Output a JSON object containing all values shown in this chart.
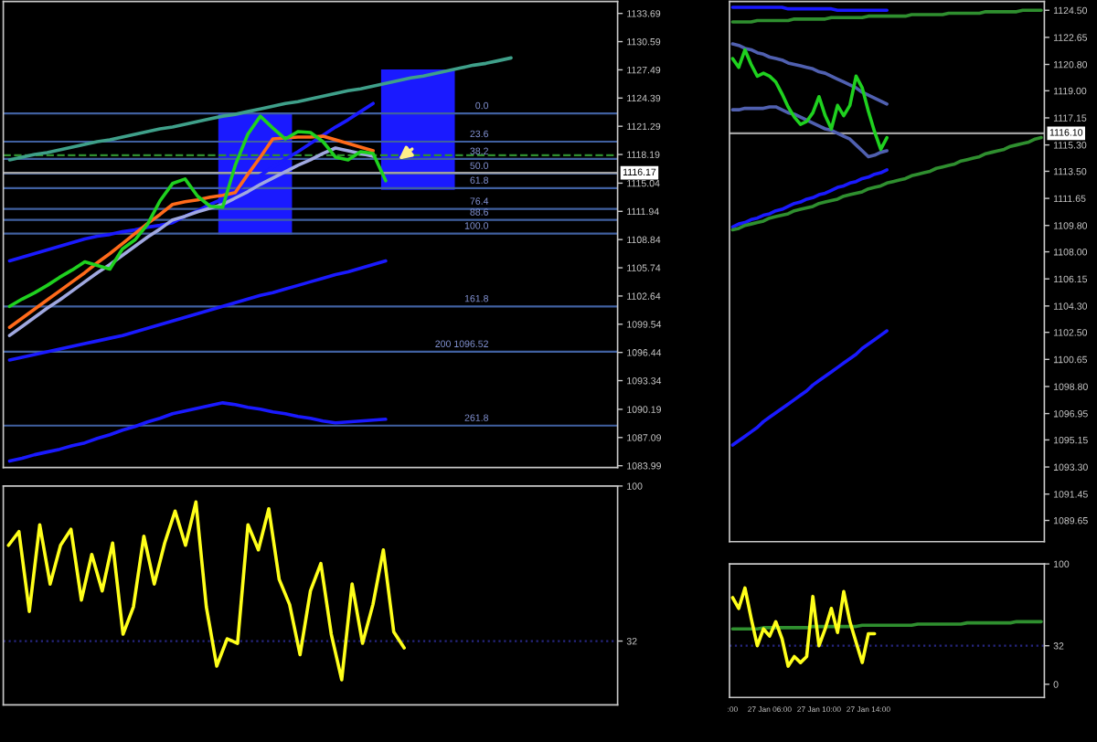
{
  "chart_data": [
    {
      "type": "line",
      "tick_labels": "y",
      "categories": [
        null,
        null,
        null,
        null,
        null,
        null,
        null,
        null,
        null,
        null,
        null,
        null,
        null,
        null,
        null,
        null,
        null,
        null,
        null,
        null,
        null,
        null,
        null,
        null,
        null,
        null,
        null,
        null,
        null,
        null,
        null,
        null,
        null,
        null,
        null,
        null,
        null,
        null,
        null,
        null,
        null,
        null,
        null,
        null,
        null,
        null,
        null,
        null,
        null
      ],
      "series": [
        {
          "color": "#1a1aff",
          "values": [
            1095.6,
            1095.9,
            1096.2,
            1096.5,
            1096.8,
            1097.1,
            1097.4,
            1097.7,
            1098.0,
            1098.3,
            1098.7,
            1099.1,
            1099.5,
            1099.9,
            1100.3,
            1100.7,
            1101.1,
            1101.5,
            1101.9,
            1102.3,
            1102.7,
            1103.0,
            1103.4,
            1103.8,
            1104.2,
            1104.6,
            1105.0,
            1105.3,
            1105.7,
            1106.1,
            1106.5,
            null,
            null,
            null,
            null,
            null,
            null,
            null,
            null,
            null,
            null,
            null,
            null,
            null,
            null,
            null,
            null,
            null,
            null
          ]
        },
        {
          "color": "#1a1aff",
          "values": [
            1084.5,
            1084.8,
            1085.2,
            1085.5,
            1085.8,
            1086.2,
            1086.5,
            1087.0,
            1087.4,
            1087.9,
            1088.3,
            1088.8,
            1089.2,
            1089.7,
            1090.0,
            1090.3,
            1090.6,
            1090.9,
            1090.7,
            1090.4,
            1090.2,
            1089.9,
            1089.7,
            1089.4,
            1089.2,
            1088.9,
            1088.7,
            1088.8,
            1088.9,
            1089.0,
            1089.1,
            null,
            null,
            null,
            null,
            null,
            null,
            null,
            null,
            null,
            null,
            null,
            null,
            null,
            null,
            null,
            null,
            null,
            null
          ]
        },
        {
          "color": "#1a1aff",
          "values": [
            1106.5,
            1106.9,
            1107.3,
            1107.7,
            1108.1,
            1108.5,
            1108.9,
            1109.2,
            1109.4,
            1109.7,
            1109.9,
            1110.2,
            1110.4,
            1110.7,
            1111.4,
            1112.0,
            1112.7,
            1113.3,
            1114.2,
            1115.1,
            1115.9,
            1116.8,
            1117.7,
            1118.5,
            1119.4,
            1120.3,
            1121.2,
            1122.0,
            1122.9,
            1123.8,
            null,
            null,
            null,
            null,
            null,
            null,
            null,
            null,
            null,
            null,
            null,
            null,
            null,
            null,
            null,
            null,
            null,
            null,
            null
          ]
        },
        {
          "color": "#a0a8e0",
          "values": [
            1098.3,
            1099.3,
            1100.3,
            1101.3,
            1102.2,
            1103.2,
            1104.2,
            1105.2,
            1106.1,
            1107.1,
            1108.1,
            1109.1,
            1110.0,
            1111.0,
            1111.4,
            1111.9,
            1112.3,
            1112.7,
            1113.4,
            1114.1,
            1114.9,
            1115.6,
            1116.3,
            1117.0,
            1117.6,
            1118.3,
            1118.9,
            1118.6,
            1118.3,
            1118.0,
            null,
            null,
            null,
            null,
            null,
            null,
            null,
            null,
            null,
            null,
            null,
            null,
            null,
            null,
            null,
            null,
            null,
            null,
            null
          ]
        },
        {
          "color": "#ff6a1a",
          "values": [
            1099.2,
            1100.2,
            1101.2,
            1102.2,
            1103.2,
            1104.2,
            1105.2,
            1106.3,
            1107.3,
            1108.4,
            1109.5,
            1110.6,
            1111.6,
            1112.7,
            1113.0,
            1113.2,
            1113.5,
            1113.7,
            1114.0,
            1116.0,
            1117.9,
            1119.9,
            1120.0,
            1120.1,
            1120.1,
            1120.2,
            1119.8,
            1119.4,
            1119.0,
            1118.6,
            null,
            null,
            null,
            null,
            null,
            null,
            null,
            null,
            null,
            null,
            null,
            null,
            null,
            null,
            null,
            null,
            null,
            null,
            null
          ]
        },
        {
          "color": "#3fa08a",
          "values": [
            1117.6,
            1117.9,
            1118.2,
            1118.4,
            1118.7,
            1119.0,
            1119.3,
            1119.6,
            1119.8,
            1120.1,
            1120.4,
            1120.7,
            1121.0,
            1121.2,
            1121.5,
            1121.8,
            1122.1,
            1122.4,
            1122.6,
            1122.9,
            1123.2,
            1123.5,
            1123.8,
            1124.0,
            1124.3,
            1124.6,
            1124.9,
            1125.2,
            1125.4,
            1125.7,
            1126.0,
            1126.3,
            1126.6,
            1126.8,
            1127.1,
            1127.4,
            1127.7,
            1128.0,
            1128.2,
            1128.5,
            1128.8,
            null,
            null,
            null,
            null,
            null,
            null,
            null,
            null
          ]
        },
        {
          "color": "#1fd11f",
          "values": [
            1101.5,
            1102.3,
            1103.0,
            1103.8,
            1104.7,
            1105.5,
            1106.4,
            1106.0,
            1105.6,
            1107.8,
            1108.8,
            1110.5,
            1113.1,
            1115.0,
            1115.5,
            1113.6,
            1112.5,
            1112.4,
            1117.0,
            1120.4,
            1122.4,
            1121.1,
            1119.9,
            1120.7,
            1120.6,
            1119.6,
            1117.9,
            1117.6,
            1118.5,
            1118.3,
            1115.3,
            null,
            null,
            null,
            null,
            null,
            null,
            null,
            null,
            null,
            null,
            null,
            null,
            null,
            null,
            null,
            null,
            null,
            null
          ]
        }
      ],
      "ylim": [
        1083.8,
        1135.0
      ],
      "yticks": [
        1133.69,
        1130.59,
        1127.49,
        1124.39,
        1121.29,
        1118.19,
        1115.04,
        1111.94,
        1108.84,
        1105.74,
        1102.64,
        1099.54,
        1096.44,
        1093.34,
        1090.19,
        1087.09,
        1083.99
      ],
      "annotations": [
        "0.0",
        "23.6",
        "38.2",
        "50.0",
        "61.8",
        "76.4",
        "88.6",
        "100.0",
        "161.8",
        "200 1096.52",
        "261.8"
      ],
      "ref_lines": [
        {
          "axis": "y",
          "value": 1122.7,
          "color": "#4060a0"
        },
        {
          "axis": "y",
          "value": 1119.6,
          "color": "#4060a0"
        },
        {
          "axis": "y",
          "value": 1117.7,
          "color": "#4060a0"
        },
        {
          "axis": "y",
          "value": 1116.1,
          "color": "#4060a0"
        },
        {
          "axis": "y",
          "value": 1114.5,
          "color": "#4060a0"
        },
        {
          "axis": "y",
          "value": 1112.2,
          "color": "#4060a0"
        },
        {
          "axis": "y",
          "value": 1111.0,
          "color": "#4060a0"
        },
        {
          "axis": "y",
          "value": 1109.5,
          "color": "#4060a0"
        },
        {
          "axis": "y",
          "value": 1101.5,
          "color": "#4060a0"
        },
        {
          "axis": "y",
          "value": 1096.52,
          "color": "#4060a0"
        },
        {
          "axis": "y",
          "value": 1088.4,
          "color": "#4060a0"
        },
        {
          "axis": "y",
          "value": 1118.1,
          "color": "#2f8f2f",
          "line_style": "dashed"
        },
        {
          "axis": "y",
          "value": 1116.17,
          "label": "1116.17",
          "color": "#a0a0a0"
        }
      ]
    },
    {
      "type": "line",
      "tick_labels": "y",
      "categories": [
        null,
        null,
        null,
        null,
        null,
        null,
        null,
        null,
        null,
        null,
        null,
        null,
        null,
        null,
        null,
        null,
        null,
        null,
        null,
        null,
        null,
        null,
        null,
        null,
        null,
        null,
        null,
        null,
        null,
        null,
        null,
        null,
        null,
        null,
        null,
        null,
        null,
        null,
        null,
        null,
        null,
        null,
        null,
        null,
        null,
        null,
        null,
        null,
        null,
        null,
        null
      ],
      "series": [
        {
          "color": "#1a1aff",
          "values": [
            1124.7,
            1124.7,
            1124.7,
            1124.7,
            1124.7,
            1124.7,
            1124.7,
            1124.7,
            1124.7,
            1124.6,
            1124.6,
            1124.6,
            1124.6,
            1124.6,
            1124.6,
            1124.6,
            1124.6,
            1124.5,
            1124.5,
            1124.5,
            1124.5,
            1124.5,
            1124.5,
            1124.5,
            1124.5,
            1124.5,
            null,
            null,
            null,
            null,
            null,
            null,
            null,
            null,
            null,
            null,
            null,
            null,
            null,
            null,
            null,
            null,
            null,
            null,
            null,
            null,
            null,
            null,
            null,
            null,
            null
          ]
        },
        {
          "color": "#2f8f2f",
          "values": [
            1123.7,
            1123.7,
            1123.7,
            1123.7,
            1123.8,
            1123.8,
            1123.8,
            1123.8,
            1123.8,
            1123.8,
            1123.9,
            1123.9,
            1123.9,
            1123.9,
            1123.9,
            1123.9,
            1124.0,
            1124.0,
            1124.0,
            1124.0,
            1124.0,
            1124.0,
            1124.1,
            1124.1,
            1124.1,
            1124.1,
            1124.1,
            1124.1,
            1124.1,
            1124.2,
            1124.2,
            1124.2,
            1124.2,
            1124.2,
            1124.2,
            1124.3,
            1124.3,
            1124.3,
            1124.3,
            1124.3,
            1124.3,
            1124.4,
            1124.4,
            1124.4,
            1124.4,
            1124.4,
            1124.4,
            1124.5,
            1124.5,
            1124.5,
            1124.5
          ]
        },
        {
          "color": "#5060b0",
          "values": [
            1122.2,
            1122.1,
            1121.9,
            1121.8,
            1121.6,
            1121.5,
            1121.3,
            1121.2,
            1121.1,
            1120.9,
            1120.8,
            1120.7,
            1120.6,
            1120.5,
            1120.3,
            1120.2,
            1120.0,
            1119.8,
            1119.6,
            1119.4,
            1119.2,
            1118.9,
            1118.7,
            1118.5,
            1118.3,
            1118.1,
            null,
            null,
            null,
            null,
            null,
            null,
            null,
            null,
            null,
            null,
            null,
            null,
            null,
            null,
            null,
            null,
            null,
            null,
            null,
            null,
            null,
            null,
            null,
            null,
            null
          ]
        },
        {
          "color": "#5060b0",
          "values": [
            1117.7,
            1117.7,
            1117.8,
            1117.8,
            1117.8,
            1117.8,
            1117.9,
            1117.9,
            1117.7,
            1117.5,
            1117.4,
            1117.2,
            1117.0,
            1116.8,
            1116.6,
            1116.4,
            1116.3,
            1116.1,
            1115.9,
            1115.7,
            1115.3,
            1114.9,
            1114.5,
            1114.6,
            1114.8,
            1114.9,
            null,
            null,
            null,
            null,
            null,
            null,
            null,
            null,
            null,
            null,
            null,
            null,
            null,
            null,
            null,
            null,
            null,
            null,
            null,
            null,
            null,
            null,
            null,
            null,
            null
          ]
        },
        {
          "color": "#1a1aff",
          "values": [
            1109.7,
            1109.9,
            1110.0,
            1110.2,
            1110.3,
            1110.5,
            1110.6,
            1110.8,
            1110.9,
            1111.1,
            1111.3,
            1111.4,
            1111.6,
            1111.7,
            1111.9,
            1112.0,
            1112.2,
            1112.4,
            1112.5,
            1112.7,
            1112.8,
            1113.0,
            1113.1,
            1113.3,
            1113.4,
            1113.6,
            null,
            null,
            null,
            null,
            null,
            null,
            null,
            null,
            null,
            null,
            null,
            null,
            null,
            null,
            null,
            null,
            null,
            null,
            null,
            null,
            null,
            null,
            null,
            null,
            null
          ]
        },
        {
          "color": "#1a1aff",
          "values": [
            1094.8,
            1095.1,
            1095.4,
            1095.7,
            1096.0,
            1096.4,
            1096.7,
            1097.0,
            1097.3,
            1097.6,
            1097.9,
            1098.2,
            1098.5,
            1098.9,
            1099.2,
            1099.5,
            1099.8,
            1100.1,
            1100.4,
            1100.7,
            1101.0,
            1101.4,
            1101.7,
            1102.0,
            1102.3,
            1102.6,
            null,
            null,
            null,
            null,
            null,
            null,
            null,
            null,
            null,
            null,
            null,
            null,
            null,
            null,
            null,
            null,
            null,
            null,
            null,
            null,
            null,
            null,
            null,
            null,
            null
          ]
        },
        {
          "color": "#2f8f2f",
          "values": [
            1109.5,
            1109.6,
            1109.8,
            1109.9,
            1110.0,
            1110.1,
            1110.3,
            1110.4,
            1110.5,
            1110.6,
            1110.8,
            1110.9,
            1111.0,
            1111.1,
            1111.3,
            1111.4,
            1111.5,
            1111.6,
            1111.8,
            1111.9,
            1112.0,
            1112.1,
            1112.3,
            1112.4,
            1112.5,
            1112.7,
            1112.8,
            1112.9,
            1113.0,
            1113.2,
            1113.3,
            1113.4,
            1113.5,
            1113.7,
            1113.8,
            1113.9,
            1114.0,
            1114.2,
            1114.3,
            1114.4,
            1114.5,
            1114.7,
            1114.8,
            1114.9,
            1115.0,
            1115.2,
            1115.3,
            1115.4,
            1115.5,
            1115.7,
            1115.8
          ]
        },
        {
          "color": "#1fd11f",
          "values": [
            1121.2,
            1120.6,
            1121.8,
            1120.8,
            1120.0,
            1120.2,
            1120.0,
            1119.6,
            1118.8,
            1117.9,
            1117.2,
            1116.7,
            1116.9,
            1117.5,
            1118.6,
            1117.3,
            1116.4,
            1118.0,
            1117.3,
            1118.0,
            1120.0,
            1119.2,
            1117.6,
            1116.2,
            1115.0,
            1115.8,
            null,
            null,
            null,
            null,
            null,
            null,
            null,
            null,
            null,
            null,
            null,
            null,
            null,
            null,
            null,
            null,
            null,
            null,
            null,
            null,
            null,
            null,
            null,
            null,
            null
          ]
        }
      ],
      "ylim": [
        1088.2,
        1125.1
      ],
      "yticks": [
        {
          "value": 1124.5,
          "label": "1124.50"
        },
        {
          "value": 1122.65,
          "label": "1122.65"
        },
        {
          "value": 1120.8,
          "label": "1120.80"
        },
        {
          "value": 1119.0,
          "label": "1119.00"
        },
        {
          "value": 1117.15,
          "label": "1117.15"
        },
        {
          "value": 1115.3,
          "label": "1115.30"
        },
        {
          "value": 1113.5,
          "label": "1113.50"
        },
        {
          "value": 1111.65,
          "label": "1111.65"
        },
        {
          "value": 1109.8,
          "label": "1109.80"
        },
        {
          "value": 1108.0,
          "label": "1108.00"
        },
        {
          "value": 1106.15,
          "label": "1106.15"
        },
        {
          "value": 1104.3,
          "label": "1104.30"
        },
        {
          "value": 1102.5,
          "label": "1102.50"
        },
        {
          "value": 1100.65,
          "label": "1100.65"
        },
        {
          "value": 1098.8,
          "label": "1098.80"
        },
        {
          "value": 1096.95,
          "label": "1096.95"
        },
        {
          "value": 1095.15,
          "label": "1095.15"
        },
        {
          "value": 1093.3,
          "label": "1093.30"
        },
        {
          "value": 1091.45,
          "label": "1091.45"
        },
        {
          "value": 1089.65,
          "label": "1089.65"
        }
      ],
      "ref_lines": [
        {
          "axis": "y",
          "value": 1116.1,
          "label": "1116.10",
          "color": "#a0a0a0"
        }
      ]
    },
    {
      "type": "line",
      "tick_labels": "y",
      "categories": [
        null,
        null,
        null,
        null,
        null,
        null,
        null,
        null,
        null,
        null,
        null,
        null,
        null,
        null,
        null,
        null,
        null,
        null,
        null,
        null,
        null,
        null,
        null,
        null,
        null,
        null,
        null,
        null,
        null,
        null,
        null,
        null,
        null,
        null,
        null,
        null,
        null,
        null,
        null,
        null,
        null,
        null,
        null,
        null,
        null,
        null,
        null,
        null,
        null,
        null,
        null,
        null,
        null,
        null,
        null,
        null,
        null,
        null,
        null
      ],
      "series": [
        {
          "color": "#ffff1a",
          "values": [
            74,
            80,
            45,
            83,
            57,
            74,
            81,
            50,
            70,
            54,
            75,
            35,
            47,
            78,
            57,
            75,
            89,
            74,
            93,
            47,
            21,
            33,
            31,
            83,
            72,
            90,
            59,
            48,
            26,
            54,
            66,
            35,
            15,
            57,
            31,
            48,
            72,
            36,
            29,
            null,
            null,
            null,
            null,
            null,
            null,
            null,
            null,
            null,
            null,
            null,
            null,
            null,
            null,
            null,
            null,
            null,
            null,
            null,
            null
          ]
        }
      ],
      "ylim": [
        4,
        100
      ],
      "yticks": [
        100,
        32
      ],
      "ref_lines": [
        {
          "axis": "y",
          "value": 32,
          "color": "#262680",
          "line_style": "dotted"
        }
      ]
    },
    {
      "type": "line",
      "categories": [
        ":00",
        null,
        null,
        null,
        null,
        null,
        "27 Jan 06:00",
        null,
        null,
        null,
        null,
        null,
        null,
        null,
        "27 Jan 10:00",
        null,
        null,
        null,
        null,
        null,
        null,
        null,
        "27 Jan 14:00",
        null,
        null,
        null,
        null,
        null,
        null,
        null,
        null,
        null,
        null,
        null,
        null,
        null,
        null,
        null,
        null,
        null,
        null,
        null,
        null,
        null,
        null,
        null,
        null,
        null,
        null,
        null,
        null
      ],
      "series": [
        {
          "color": "#2f8f2f",
          "values": [
            46,
            46,
            46,
            46,
            46,
            47,
            47,
            47,
            47,
            47,
            47,
            47,
            47,
            48,
            48,
            48,
            48,
            48,
            48,
            48,
            48,
            49,
            49,
            49,
            49,
            49,
            49,
            49,
            49,
            49,
            50,
            50,
            50,
            50,
            50,
            50,
            50,
            50,
            51,
            51,
            51,
            51,
            51,
            51,
            51,
            51,
            52,
            52,
            52,
            52,
            52
          ]
        },
        {
          "color": "#ffff1a",
          "values": [
            72,
            63,
            80,
            55,
            32,
            46,
            40,
            52,
            38,
            15,
            23,
            18,
            23,
            73,
            32,
            46,
            63,
            43,
            77,
            52,
            35,
            18,
            42,
            42,
            null,
            null,
            null,
            null,
            null,
            null,
            null,
            null,
            null,
            null,
            null,
            null,
            null,
            null,
            null,
            null,
            null,
            null,
            null,
            null,
            null,
            null,
            null,
            null,
            null,
            null,
            null
          ]
        }
      ],
      "ylim": [
        -11,
        100
      ],
      "yticks": [
        100,
        32,
        0
      ],
      "ref_lines": [
        {
          "axis": "y",
          "value": 32,
          "color": "#262680",
          "line_style": "dotted"
        }
      ]
    }
  ]
}
